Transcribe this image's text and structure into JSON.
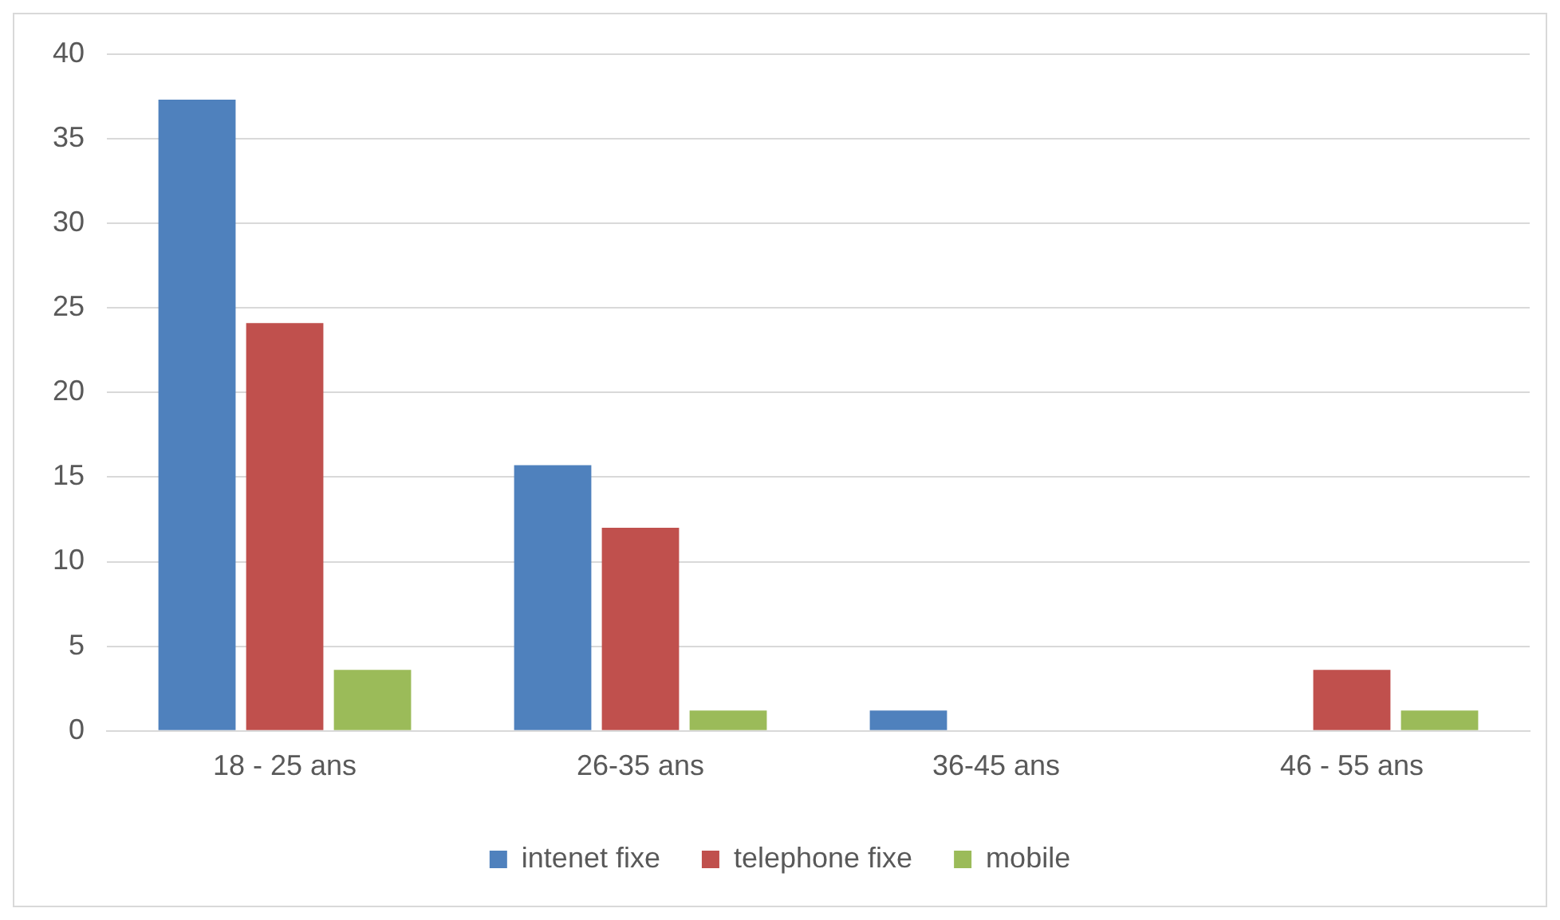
{
  "chart_data": {
    "type": "bar",
    "categories": [
      "18 - 25 ans",
      "26-35 ans",
      "36-45 ans",
      "46 - 55 ans"
    ],
    "series": [
      {
        "name": "intenet fixe",
        "color": "#4f81bd",
        "values": [
          37.3,
          15.7,
          1.2,
          0
        ]
      },
      {
        "name": "telephone fixe",
        "color": "#c0504d",
        "values": [
          24.1,
          12,
          0,
          3.6
        ]
      },
      {
        "name": "mobile",
        "color": "#9bbb59",
        "values": [
          3.6,
          1.2,
          0,
          1.2
        ]
      }
    ],
    "ylim": [
      0,
      40
    ],
    "yticks": [
      0,
      5,
      10,
      15,
      20,
      25,
      30,
      35,
      40
    ],
    "grid": "y",
    "legend": "bottom"
  }
}
